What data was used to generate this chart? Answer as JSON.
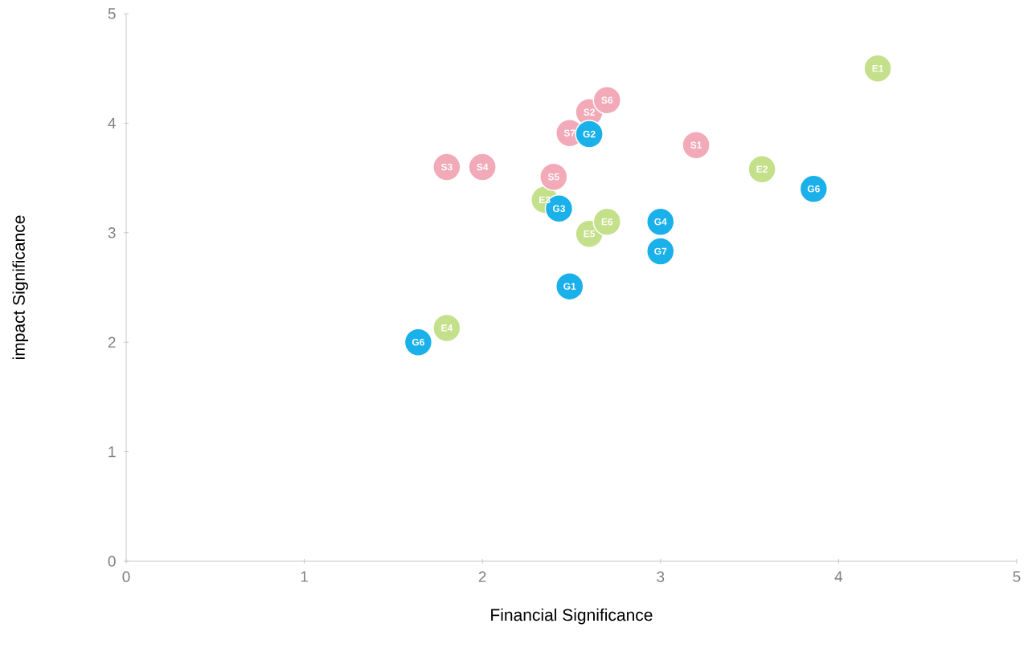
{
  "chart_data": {
    "type": "scatter",
    "xlabel": "Financial Significance",
    "ylabel": "impact Significance",
    "xlim": [
      0,
      5
    ],
    "ylim": [
      0,
      5
    ],
    "xticks": [
      0,
      1,
      2,
      3,
      4,
      5
    ],
    "yticks": [
      0,
      1,
      2,
      3,
      4,
      5
    ],
    "marker": "circle",
    "series": [
      {
        "color": "#c4e08a",
        "x": [
          4.22,
          3.57,
          2.35,
          1.8,
          2.6,
          2.7
        ],
        "values": [
          4.5,
          3.58,
          3.3,
          2.13,
          2.99,
          3.1
        ]
      },
      {
        "color": "#f2a9b8",
        "x": [
          3.2,
          2.6,
          1.8,
          2.0,
          2.4,
          2.7,
          2.49
        ],
        "values": [
          3.8,
          4.1,
          3.6,
          3.6,
          3.51,
          4.21,
          3.91
        ]
      },
      {
        "color": "#1ab0ea",
        "x": [
          2.49,
          2.6,
          2.43,
          3.0,
          3.86,
          1.64,
          3.0
        ],
        "values": [
          2.51,
          3.9,
          3.22,
          3.1,
          3.4,
          2.0,
          2.83
        ]
      }
    ],
    "annotations": [
      {
        "text": "E1",
        "x": 4.22,
        "y": 4.5
      },
      {
        "text": "E2",
        "x": 3.57,
        "y": 3.58
      },
      {
        "text": "E3",
        "x": 2.35,
        "y": 3.3
      },
      {
        "text": "E4",
        "x": 1.8,
        "y": 2.13
      },
      {
        "text": "E5",
        "x": 2.6,
        "y": 2.99
      },
      {
        "text": "E6",
        "x": 2.7,
        "y": 3.1
      },
      {
        "text": "S1",
        "x": 3.2,
        "y": 3.8
      },
      {
        "text": "S2",
        "x": 2.6,
        "y": 4.1
      },
      {
        "text": "S3",
        "x": 1.8,
        "y": 3.6
      },
      {
        "text": "S4",
        "x": 2.0,
        "y": 3.6
      },
      {
        "text": "S5",
        "x": 2.4,
        "y": 3.51
      },
      {
        "text": "S6",
        "x": 2.7,
        "y": 4.21
      },
      {
        "text": "S7",
        "x": 2.49,
        "y": 3.91
      },
      {
        "text": "G1",
        "x": 2.49,
        "y": 2.51
      },
      {
        "text": "G2",
        "x": 2.6,
        "y": 3.9
      },
      {
        "text": "G3",
        "x": 2.43,
        "y": 3.22
      },
      {
        "text": "G4",
        "x": 3.0,
        "y": 3.1
      },
      {
        "text": "G6",
        "x": 3.86,
        "y": 3.4
      },
      {
        "text": "G6",
        "x": 1.64,
        "y": 2.0
      },
      {
        "text": "G7",
        "x": 3.0,
        "y": 2.83
      }
    ]
  }
}
